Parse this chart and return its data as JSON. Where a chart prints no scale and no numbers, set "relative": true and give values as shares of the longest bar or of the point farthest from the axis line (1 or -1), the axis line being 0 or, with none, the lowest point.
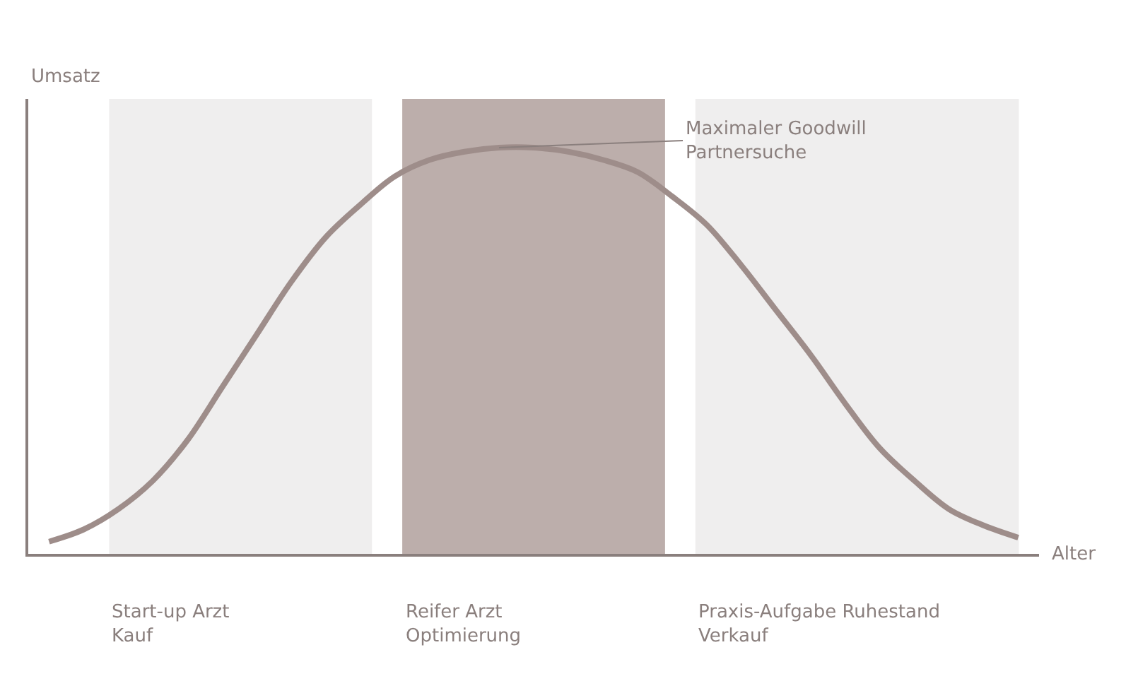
{
  "chart_data": {
    "type": "line",
    "relative": true,
    "ylabel": "Umsatz",
    "xlabel": "Alter",
    "color": "#9e8d8a",
    "marker": "none",
    "legend": false,
    "grid": false,
    "tick_labels": false,
    "categories": [
      null,
      null,
      null,
      null,
      null,
      null,
      null,
      null,
      null,
      null,
      null,
      null,
      null,
      null,
      null,
      null,
      null,
      null,
      null,
      null,
      null,
      null,
      null,
      null,
      null,
      null,
      null,
      null,
      null
    ],
    "values": [
      0.03,
      0.06,
      0.11,
      0.18,
      0.28,
      0.41,
      0.54,
      0.67,
      0.78,
      0.86,
      0.93,
      0.97,
      0.99,
      1.0,
      1.0,
      0.99,
      0.97,
      0.94,
      0.88,
      0.81,
      0.71,
      0.6,
      0.49,
      0.37,
      0.26,
      0.18,
      0.11,
      0.07,
      0.04
    ],
    "annotations": [
      "Maximaler Goodwill\nPartnersuche",
      "Start-up Arzt\nKauf",
      "Reifer Arzt\nOptimierung",
      "Praxis-Aufgabe Ruhestand\nVerkauf"
    ]
  }
}
